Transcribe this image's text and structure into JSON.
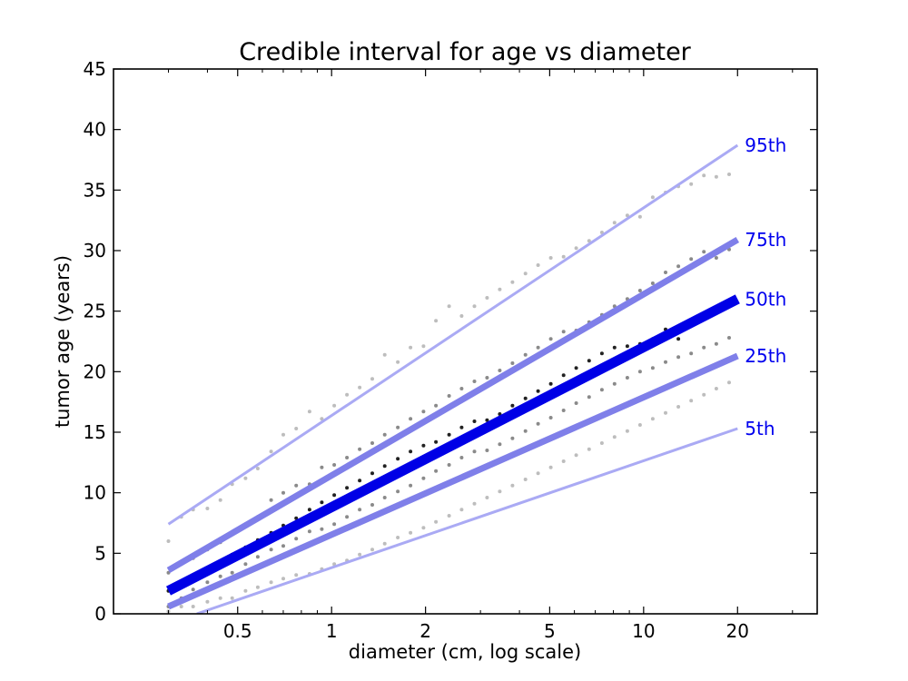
{
  "chart_data": {
    "type": "line",
    "title": "Credible interval for age vs diameter",
    "xlabel": "diameter (cm, log scale)",
    "ylabel": "tumor age (years)",
    "x_scale": "log",
    "xlim": [
      0.2,
      36
    ],
    "ylim": [
      0,
      45
    ],
    "grid": false,
    "x_ticks": [
      0.5,
      1,
      2,
      5,
      10,
      20
    ],
    "x_tick_labels": [
      "0.5",
      "1",
      "2",
      "5",
      "10",
      "20"
    ],
    "y_ticks": [
      0,
      5,
      10,
      15,
      20,
      25,
      30,
      35,
      40,
      45
    ],
    "y_tick_labels": [
      "0",
      "5",
      "10",
      "15",
      "20",
      "25",
      "30",
      "35",
      "40",
      "45"
    ],
    "label_color": "#0000ee",
    "series": [
      {
        "name": "95th",
        "label": "95th",
        "x": [
          0.3,
          20
        ],
        "y": [
          7.4,
          38.7
        ],
        "color": "#aaaaf4",
        "width": 3,
        "point_color": "#bdbdbd"
      },
      {
        "name": "75th",
        "label": "75th",
        "x": [
          0.3,
          20
        ],
        "y": [
          3.6,
          30.9
        ],
        "color": "#7f7fe9",
        "width": 7,
        "point_color": "#8a8a8a"
      },
      {
        "name": "50th",
        "label": "50th",
        "x": [
          0.3,
          20
        ],
        "y": [
          1.9,
          26.0
        ],
        "color": "#0000e6",
        "width": 11,
        "point_color": "#222222"
      },
      {
        "name": "25th",
        "label": "25th",
        "x": [
          0.3,
          20
        ],
        "y": [
          0.6,
          21.3
        ],
        "color": "#7f7fe9",
        "width": 7,
        "point_color": "#8a8a8a"
      },
      {
        "name": "5th",
        "label": "5th",
        "x": [
          0.37,
          20
        ],
        "y": [
          0.0,
          15.3
        ],
        "color": "#aaaaf4",
        "width": 3,
        "point_color": "#bdbdbd"
      }
    ],
    "points": [
      {
        "series": "95th",
        "x": [
          0.3,
          0.33,
          0.36,
          0.4,
          0.44,
          0.48,
          0.53,
          0.58,
          0.64,
          0.7,
          0.77,
          0.85,
          0.93,
          1.02,
          1.12,
          1.23,
          1.35,
          1.48,
          1.63,
          1.79,
          1.97,
          2.16,
          2.38,
          2.61,
          2.87,
          3.15,
          3.46,
          3.8,
          4.18,
          4.59,
          5.04,
          5.54,
          6.08,
          6.69,
          7.35,
          8.07,
          8.87,
          9.74,
          10.7,
          11.76,
          12.92,
          14.2,
          15.6,
          17.1,
          18.8
        ],
        "y": [
          6.0,
          8.0,
          8.6,
          8.7,
          9.4,
          10.7,
          11.2,
          12.0,
          13.4,
          14.8,
          15.3,
          16.7,
          16.1,
          17.2,
          18.1,
          18.7,
          19.4,
          21.4,
          20.8,
          22.0,
          22.1,
          24.2,
          25.4,
          24.6,
          25.4,
          26.1,
          26.8,
          27.4,
          28.1,
          28.8,
          29.4,
          29.5,
          30.2,
          30.8,
          31.5,
          32.3,
          32.9,
          32.8,
          34.4,
          34.8,
          35.3,
          35.5,
          36.2,
          36.1,
          36.3
        ]
      },
      {
        "series": "75th",
        "x": [
          0.3,
          0.33,
          0.36,
          0.4,
          0.44,
          0.48,
          0.53,
          0.58,
          0.64,
          0.7,
          0.77,
          0.85,
          0.93,
          1.02,
          1.12,
          1.23,
          1.35,
          1.48,
          1.63,
          1.79,
          1.97,
          2.16,
          2.38,
          2.61,
          2.87,
          3.15,
          3.46,
          3.8,
          4.18,
          4.59,
          5.04,
          5.54,
          6.08,
          6.69,
          7.35,
          8.07,
          8.87,
          9.74,
          10.7,
          11.76,
          12.92,
          14.2,
          15.6,
          17.1,
          18.8
        ],
        "y": [
          3.4,
          4.1,
          4.6,
          5.3,
          5.9,
          6.7,
          7.4,
          8.0,
          9.4,
          10.0,
          10.6,
          10.7,
          12.1,
          12.3,
          12.9,
          13.6,
          14.1,
          14.8,
          15.4,
          16.1,
          16.7,
          17.2,
          18.0,
          18.6,
          19.2,
          19.5,
          20.1,
          20.7,
          21.4,
          22.0,
          22.7,
          23.3,
          23.4,
          24.1,
          24.7,
          25.4,
          26.0,
          26.7,
          27.3,
          28.2,
          28.7,
          29.3,
          29.9,
          29.4,
          30.1
        ]
      },
      {
        "series": "50th",
        "x": [
          0.3,
          0.33,
          0.36,
          0.4,
          0.44,
          0.48,
          0.53,
          0.58,
          0.64,
          0.7,
          0.77,
          0.85,
          0.93,
          1.02,
          1.12,
          1.23,
          1.35,
          1.48,
          1.63,
          1.79,
          1.97,
          2.16,
          2.38,
          2.61,
          2.87,
          3.15,
          3.46,
          3.8,
          4.18,
          4.59,
          5.04,
          5.54,
          6.08,
          6.69,
          7.35,
          8.07,
          8.87,
          9.74,
          10.7,
          11.76,
          12.92,
          14.2,
          15.6,
          17.1,
          18.8
        ],
        "y": [
          1.9,
          2.5,
          3.1,
          3.7,
          4.3,
          4.9,
          5.5,
          6.1,
          6.7,
          7.3,
          7.9,
          8.6,
          9.2,
          9.8,
          10.4,
          11.0,
          11.6,
          12.2,
          12.8,
          13.4,
          13.9,
          14.2,
          14.8,
          15.4,
          15.9,
          16.0,
          16.5,
          17.2,
          17.8,
          18.4,
          19.0,
          19.7,
          20.3,
          20.9,
          21.5,
          22.0,
          22.1,
          22.3,
          22.7,
          23.5,
          22.7,
          23.9,
          24.5,
          25.1,
          25.6
        ]
      },
      {
        "series": "25th",
        "x": [
          0.3,
          0.33,
          0.36,
          0.4,
          0.44,
          0.48,
          0.53,
          0.58,
          0.64,
          0.7,
          0.77,
          0.85,
          0.93,
          1.02,
          1.12,
          1.23,
          1.35,
          1.48,
          1.63,
          1.79,
          1.97,
          2.16,
          2.38,
          2.61,
          2.87,
          3.15,
          3.46,
          3.8,
          4.18,
          4.59,
          5.04,
          5.54,
          6.08,
          6.69,
          7.35,
          8.07,
          8.87,
          9.74,
          10.7,
          11.76,
          12.92,
          14.2,
          15.6,
          17.1,
          18.8
        ],
        "y": [
          0.6,
          1.3,
          2.0,
          2.6,
          3.1,
          3.4,
          4.1,
          4.7,
          5.3,
          5.6,
          6.2,
          6.8,
          7.0,
          7.4,
          8.0,
          8.6,
          9.0,
          9.6,
          10.1,
          10.6,
          11.2,
          11.8,
          12.3,
          12.9,
          13.4,
          13.5,
          14.0,
          14.5,
          15.1,
          15.7,
          16.2,
          16.8,
          17.4,
          17.9,
          18.5,
          19.0,
          19.5,
          20.0,
          20.3,
          20.8,
          21.2,
          21.5,
          22.0,
          22.3,
          22.8
        ]
      },
      {
        "series": "5th",
        "x": [
          0.3,
          0.33,
          0.36,
          0.4,
          0.44,
          0.48,
          0.53,
          0.58,
          0.64,
          0.7,
          0.77,
          0.85,
          0.93,
          1.02,
          1.12,
          1.23,
          1.35,
          1.48,
          1.63,
          1.79,
          1.97,
          2.16,
          2.38,
          2.61,
          2.87,
          3.15,
          3.46,
          3.8,
          4.18,
          4.59,
          5.04,
          5.54,
          6.08,
          6.69,
          7.35,
          8.07,
          8.87,
          9.74,
          10.7,
          11.76,
          12.92,
          14.2,
          15.6,
          17.1,
          18.8
        ],
        "y": [
          0.2,
          0.6,
          0.6,
          1.0,
          1.3,
          1.3,
          1.9,
          2.2,
          2.6,
          2.9,
          3.2,
          3.3,
          3.7,
          4.1,
          4.4,
          4.9,
          5.3,
          5.8,
          6.3,
          6.7,
          7.1,
          7.6,
          8.1,
          8.6,
          9.1,
          9.6,
          10.1,
          10.6,
          11.1,
          11.6,
          12.1,
          12.6,
          13.1,
          13.6,
          14.1,
          14.6,
          15.1,
          15.6,
          16.1,
          16.6,
          17.1,
          17.6,
          18.1,
          18.6,
          19.1
        ]
      }
    ]
  }
}
